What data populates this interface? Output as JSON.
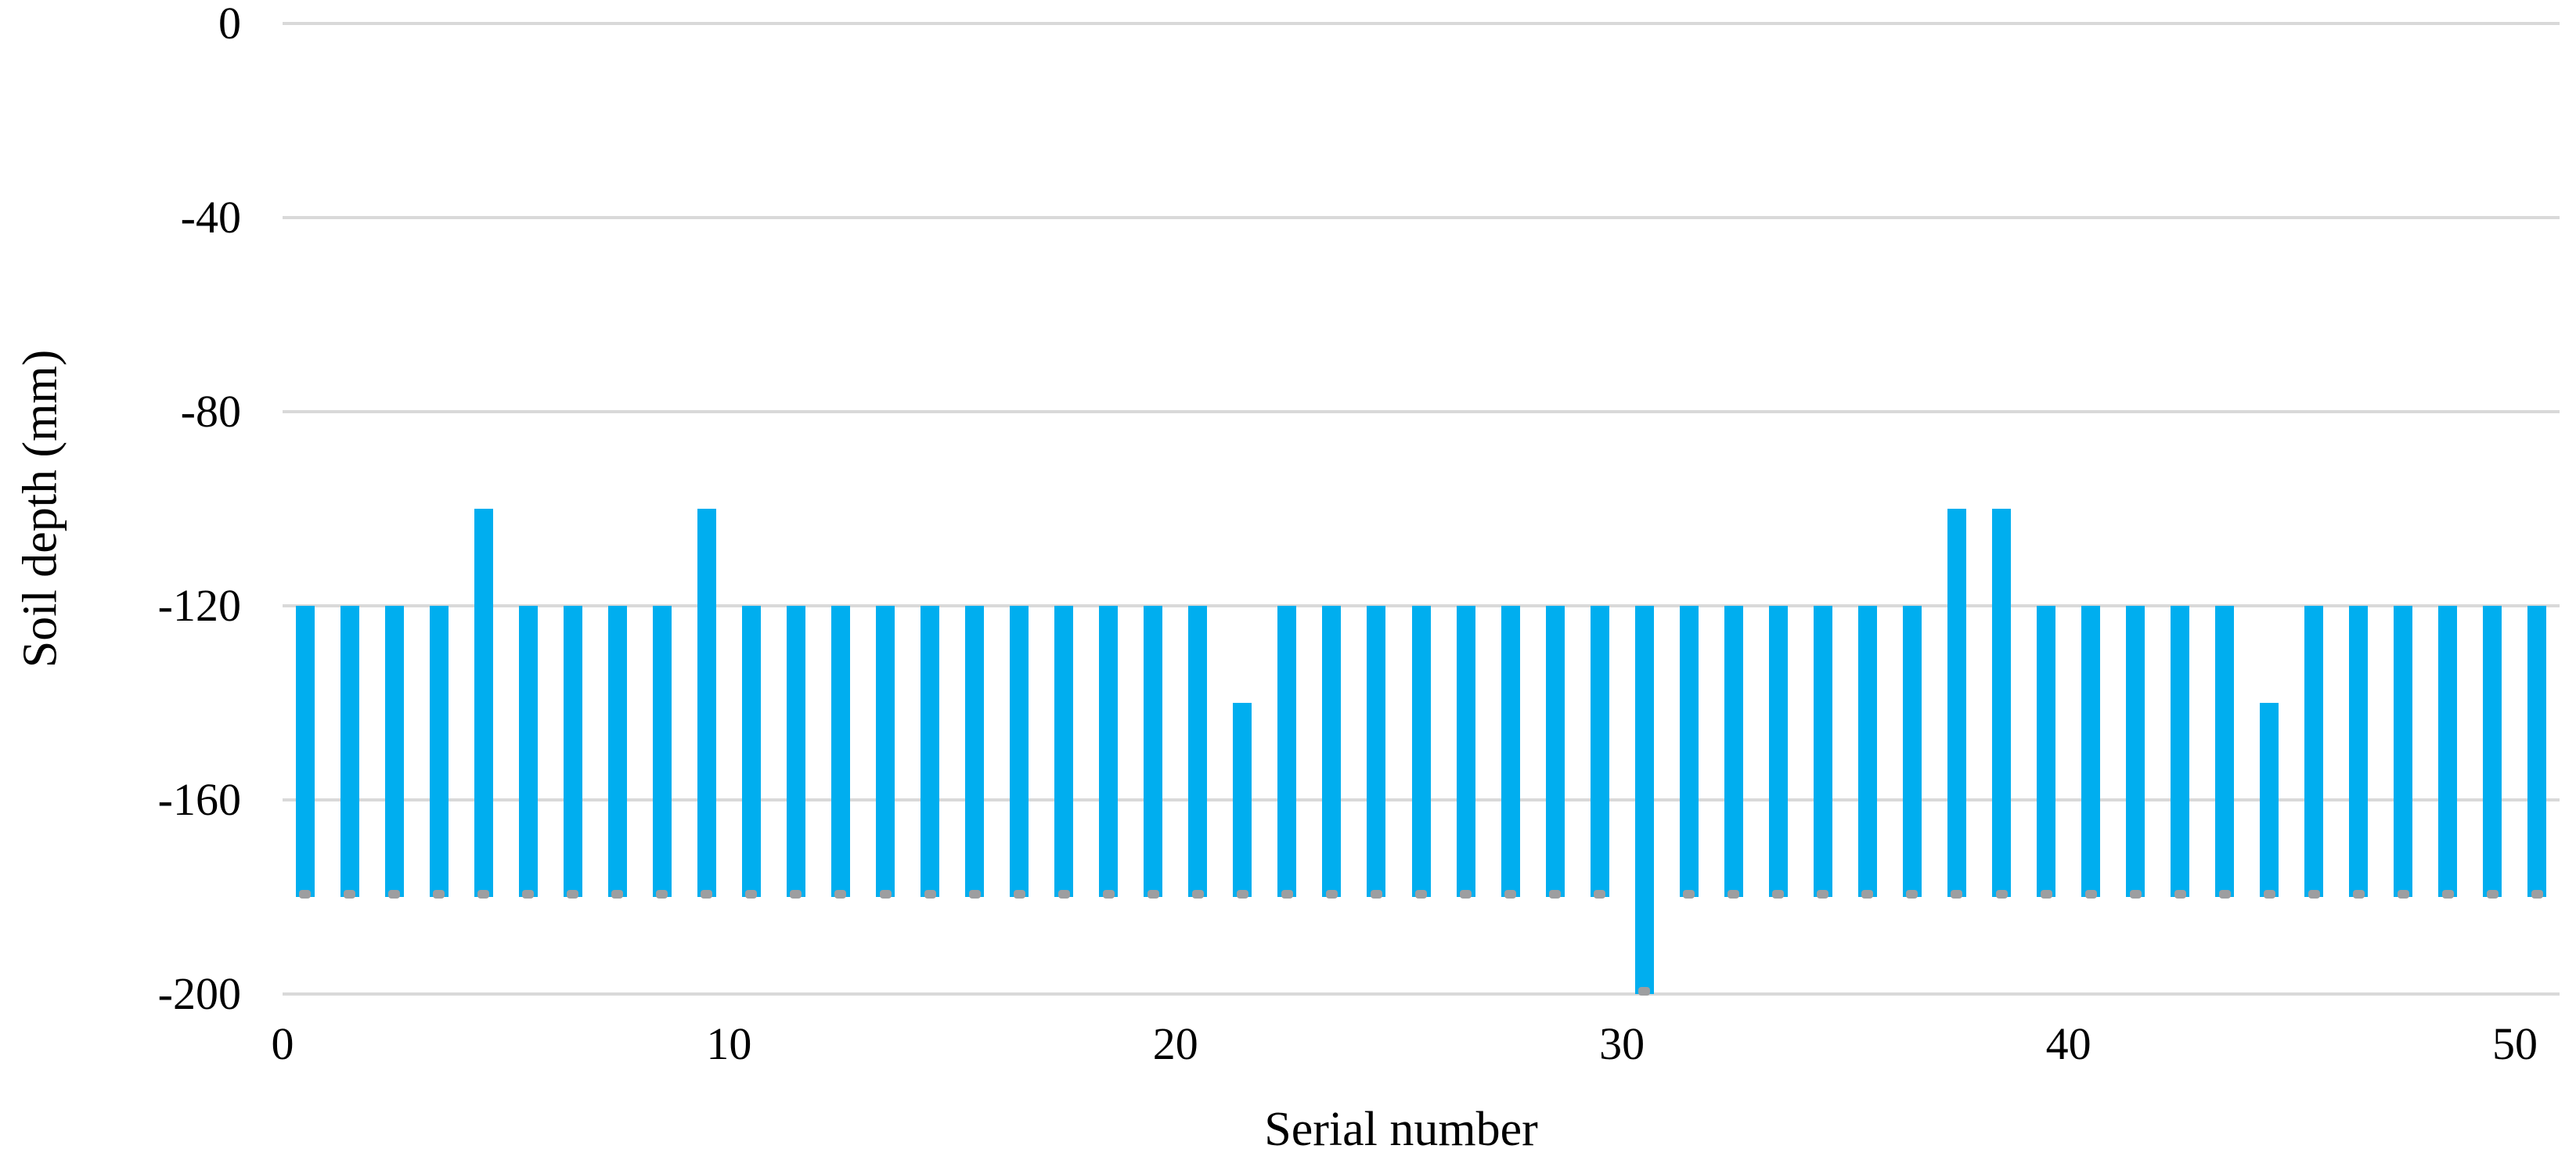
{
  "chart_data": {
    "type": "bar",
    "subtype": "floating-range-bars",
    "title": "",
    "xlabel": "Serial number",
    "ylabel": "Soil depth (mm)",
    "ylim": [
      -200,
      0
    ],
    "yticks": [
      0,
      -40,
      -80,
      -120,
      -160,
      -200
    ],
    "xticks": [
      0,
      10,
      20,
      30,
      40,
      50
    ],
    "grid": true,
    "legend": "none",
    "bar_color": "#00AEEF",
    "marker_color": "#9D9EA0",
    "gridline_color": "#D9D9D9",
    "background_color": "#FFFFFF",
    "note_default_range": "most bars span top -120 to bottom -180 mm; each bar has a small gray marker at its bottom end",
    "bars": [
      {
        "serial": 1,
        "top": -120,
        "bottom": -180
      },
      {
        "serial": 2,
        "top": -120,
        "bottom": -180
      },
      {
        "serial": 3,
        "top": -120,
        "bottom": -180
      },
      {
        "serial": 4,
        "top": -120,
        "bottom": -180
      },
      {
        "serial": 5,
        "top": -100,
        "bottom": -180
      },
      {
        "serial": 6,
        "top": -120,
        "bottom": -180
      },
      {
        "serial": 7,
        "top": -120,
        "bottom": -180
      },
      {
        "serial": 8,
        "top": -120,
        "bottom": -180
      },
      {
        "serial": 9,
        "top": -120,
        "bottom": -180
      },
      {
        "serial": 10,
        "top": -100,
        "bottom": -180
      },
      {
        "serial": 11,
        "top": -120,
        "bottom": -180
      },
      {
        "serial": 12,
        "top": -120,
        "bottom": -180
      },
      {
        "serial": 13,
        "top": -120,
        "bottom": -180
      },
      {
        "serial": 14,
        "top": -120,
        "bottom": -180
      },
      {
        "serial": 15,
        "top": -120,
        "bottom": -180
      },
      {
        "serial": 16,
        "top": -120,
        "bottom": -180
      },
      {
        "serial": 17,
        "top": -120,
        "bottom": -180
      },
      {
        "serial": 18,
        "top": -120,
        "bottom": -180
      },
      {
        "serial": 19,
        "top": -120,
        "bottom": -180
      },
      {
        "serial": 20,
        "top": -120,
        "bottom": -180
      },
      {
        "serial": 21,
        "top": -120,
        "bottom": -180
      },
      {
        "serial": 22,
        "top": -140,
        "bottom": -180
      },
      {
        "serial": 23,
        "top": -120,
        "bottom": -180
      },
      {
        "serial": 24,
        "top": -120,
        "bottom": -180
      },
      {
        "serial": 25,
        "top": -120,
        "bottom": -180
      },
      {
        "serial": 26,
        "top": -120,
        "bottom": -180
      },
      {
        "serial": 27,
        "top": -120,
        "bottom": -180
      },
      {
        "serial": 28,
        "top": -120,
        "bottom": -180
      },
      {
        "serial": 29,
        "top": -120,
        "bottom": -180
      },
      {
        "serial": 30,
        "top": -120,
        "bottom": -180
      },
      {
        "serial": 31,
        "top": -120,
        "bottom": -200
      },
      {
        "serial": 32,
        "top": -120,
        "bottom": -180
      },
      {
        "serial": 33,
        "top": -120,
        "bottom": -180
      },
      {
        "serial": 34,
        "top": -120,
        "bottom": -180
      },
      {
        "serial": 35,
        "top": -120,
        "bottom": -180
      },
      {
        "serial": 36,
        "top": -120,
        "bottom": -180
      },
      {
        "serial": 37,
        "top": -120,
        "bottom": -180
      },
      {
        "serial": 38,
        "top": -100,
        "bottom": -180
      },
      {
        "serial": 39,
        "top": -100,
        "bottom": -180
      },
      {
        "serial": 40,
        "top": -120,
        "bottom": -180
      },
      {
        "serial": 41,
        "top": -120,
        "bottom": -180
      },
      {
        "serial": 42,
        "top": -120,
        "bottom": -180
      },
      {
        "serial": 43,
        "top": -120,
        "bottom": -180
      },
      {
        "serial": 44,
        "top": -120,
        "bottom": -180
      },
      {
        "serial": 45,
        "top": -140,
        "bottom": -180
      },
      {
        "serial": 46,
        "top": -120,
        "bottom": -180
      },
      {
        "serial": 47,
        "top": -120,
        "bottom": -180
      },
      {
        "serial": 48,
        "top": -120,
        "bottom": -180
      },
      {
        "serial": 49,
        "top": -120,
        "bottom": -180
      },
      {
        "serial": 50,
        "top": -120,
        "bottom": -180
      },
      {
        "serial": 51,
        "top": -120,
        "bottom": -180
      }
    ]
  }
}
